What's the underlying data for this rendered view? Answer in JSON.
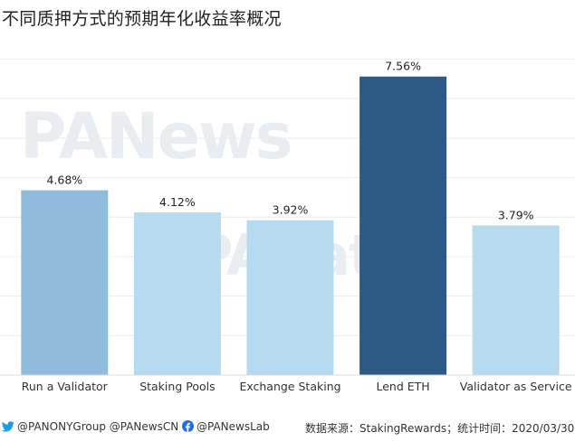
{
  "title": "不同质押方式的预期年化收益率概况",
  "chart_data": {
    "type": "bar",
    "categories": [
      "Run a Validator",
      "Staking Pools",
      "Exchange Staking",
      "Lend ETH",
      "Validator as Service"
    ],
    "values": [
      4.68,
      4.12,
      3.92,
      7.56,
      3.79
    ],
    "value_labels": [
      "4.68%",
      "4.12%",
      "3.92%",
      "7.56%",
      "3.79%"
    ],
    "bar_colors": [
      "#8fbcdc",
      "#b6daf0",
      "#b6daf0",
      "#2c5986",
      "#b6daf0"
    ],
    "ylim": [
      0,
      8.4
    ],
    "grid": true
  },
  "footer": {
    "twitter_handles": "@PANONYGroup  @PANewsCN",
    "facebook_handle": "@PANewsLab",
    "source": "数据来源：StakingRewards；统计时间：2020/03/30",
    "twitter_icon": "twitter-icon",
    "facebook_icon": "facebook-icon",
    "accent_color": "#1d9bf0"
  },
  "watermarks": {
    "logo_top": "PANews",
    "logo_mid": "PAData"
  }
}
